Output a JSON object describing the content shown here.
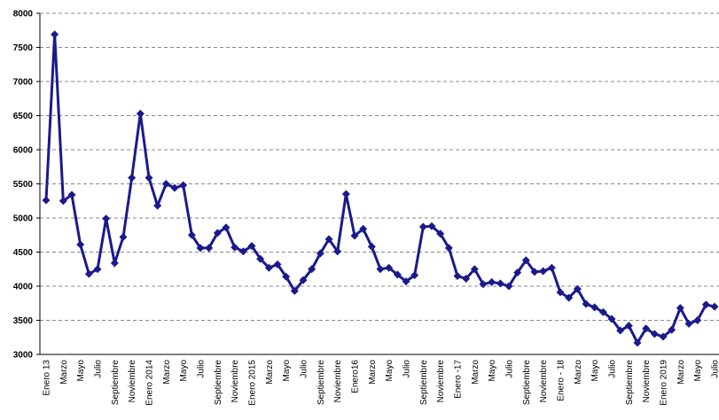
{
  "chart_data": {
    "type": "line",
    "categories": [
      "Enero 13",
      null,
      "Marzo",
      null,
      "Mayo",
      null,
      "Julio",
      null,
      "Septiembre",
      null,
      "Noviembre",
      null,
      "Enero 2014",
      null,
      "Marzo",
      null,
      "Mayo",
      null,
      "Julio",
      null,
      "Septiembre",
      null,
      "Noviembre",
      null,
      "Enero 2015",
      null,
      "Marzo",
      null,
      "Mayo",
      null,
      "Julio",
      null,
      "Septiembre",
      null,
      "Noviembre",
      null,
      "Enero16",
      null,
      "Marzo",
      null,
      "Mayo",
      null,
      "Julio",
      null,
      "Septiembre",
      null,
      "Noviembre",
      null,
      "Enero -17",
      null,
      "Marzo",
      null,
      "Mayo",
      null,
      "Julio",
      null,
      "Septiembre",
      null,
      "Noviembre",
      null,
      "Enero - 18",
      null,
      "Marzo",
      null,
      "Mayo",
      null,
      "Julio",
      null,
      "Septiembre",
      null,
      "Noviembre",
      null,
      "Enero 2019",
      null,
      "Marzo",
      null,
      "Mayo",
      null,
      "Julio"
    ],
    "series": [
      {
        "color": "#1a1a8c",
        "values": [
          5260,
          7690,
          5250,
          5340,
          4610,
          4180,
          4250,
          4990,
          4340,
          4720,
          5590,
          6530,
          5590,
          5180,
          5500,
          5440,
          5480,
          4750,
          4560,
          4560,
          4780,
          4860,
          4570,
          4510,
          4590,
          4400,
          4270,
          4320,
          4140,
          3930,
          4090,
          4250,
          4480,
          4690,
          4510,
          5350,
          4740,
          4840,
          4580,
          4250,
          4270,
          4170,
          4070,
          4160,
          4870,
          4880,
          4770,
          4560,
          4150,
          4110,
          4250,
          4030,
          4060,
          4040,
          4000,
          4200,
          4380,
          4210,
          4220,
          4270,
          3910,
          3830,
          3960,
          3740,
          3690,
          3620,
          3520,
          3350,
          3420,
          3170,
          3380,
          3300,
          3260,
          3360,
          3680,
          3450,
          3500,
          3730,
          3700
        ]
      }
    ],
    "ylim": [
      3000,
      8000
    ],
    "yticks": [
      3000,
      3500,
      4000,
      4500,
      5000,
      5500,
      6000,
      6500,
      7000,
      7500,
      8000
    ],
    "grid": true
  }
}
